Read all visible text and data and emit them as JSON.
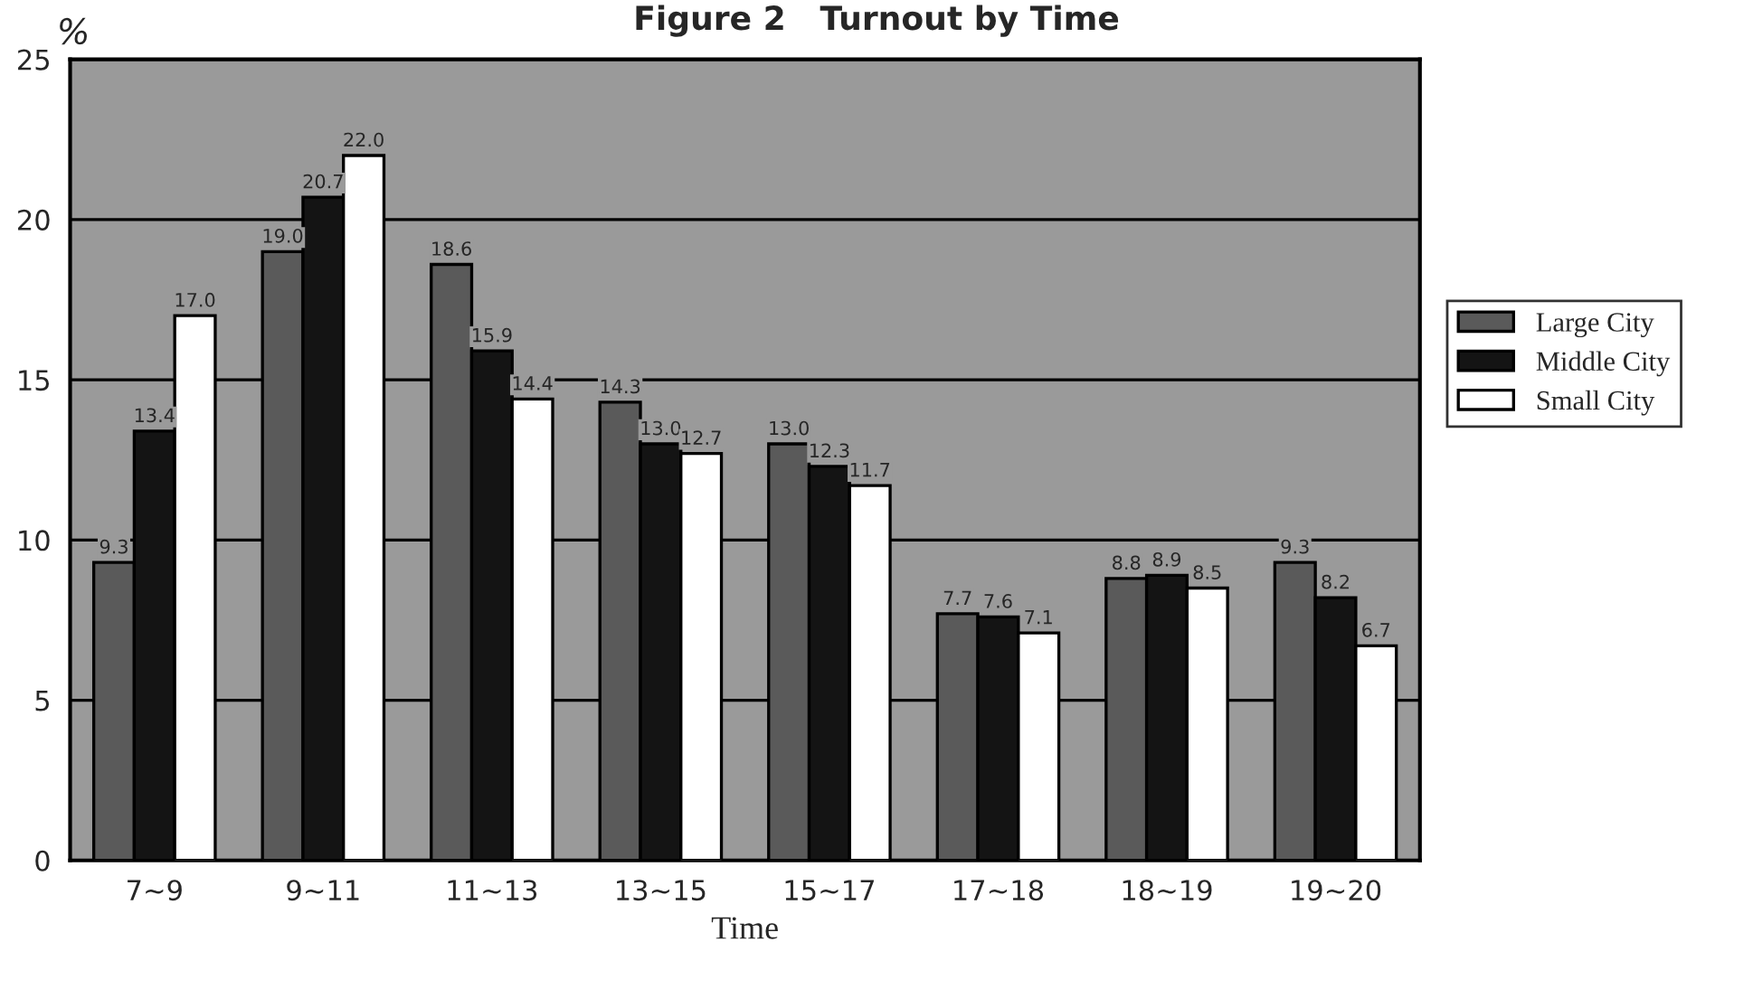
{
  "chart_data": {
    "type": "bar",
    "title": "Figure 2   Turnout by Time",
    "xlabel": "Time",
    "ylabel": "%",
    "categories": [
      "7∼9",
      "9∼11",
      "11∼13",
      "13∼15",
      "15∼17",
      "17∼18",
      "18∼19",
      "19∼20"
    ],
    "series": [
      {
        "name": "Large City",
        "color": "#5a5a5a",
        "values": [
          9.3,
          19.0,
          18.6,
          14.3,
          13.0,
          7.7,
          8.8,
          9.3
        ],
        "value_labels": [
          "9.3",
          "19.0",
          "18.6",
          "14.3",
          "13.0",
          "7.7",
          "8.8",
          "9.3"
        ]
      },
      {
        "name": "Middle City",
        "color": "#141414",
        "values": [
          13.4,
          20.7,
          15.9,
          13.0,
          12.3,
          7.6,
          8.9,
          8.2
        ],
        "value_labels": [
          "13.4",
          "20.7",
          "15.9",
          "13.0",
          "12.3",
          "7.6",
          "8.9",
          "8.2"
        ]
      },
      {
        "name": "Small City",
        "color": "#ffffff",
        "values": [
          17.0,
          22.0,
          14.4,
          12.7,
          11.7,
          7.1,
          8.5,
          6.7
        ],
        "value_labels": [
          "17.0",
          "22.0",
          "14.4",
          "12.7",
          "11.7",
          "7.1",
          "8.5",
          "6.7"
        ]
      }
    ],
    "ylim": [
      0,
      25
    ],
    "yticks": [
      0,
      5,
      10,
      15,
      20,
      25
    ],
    "grid": "y",
    "legend": "right"
  }
}
